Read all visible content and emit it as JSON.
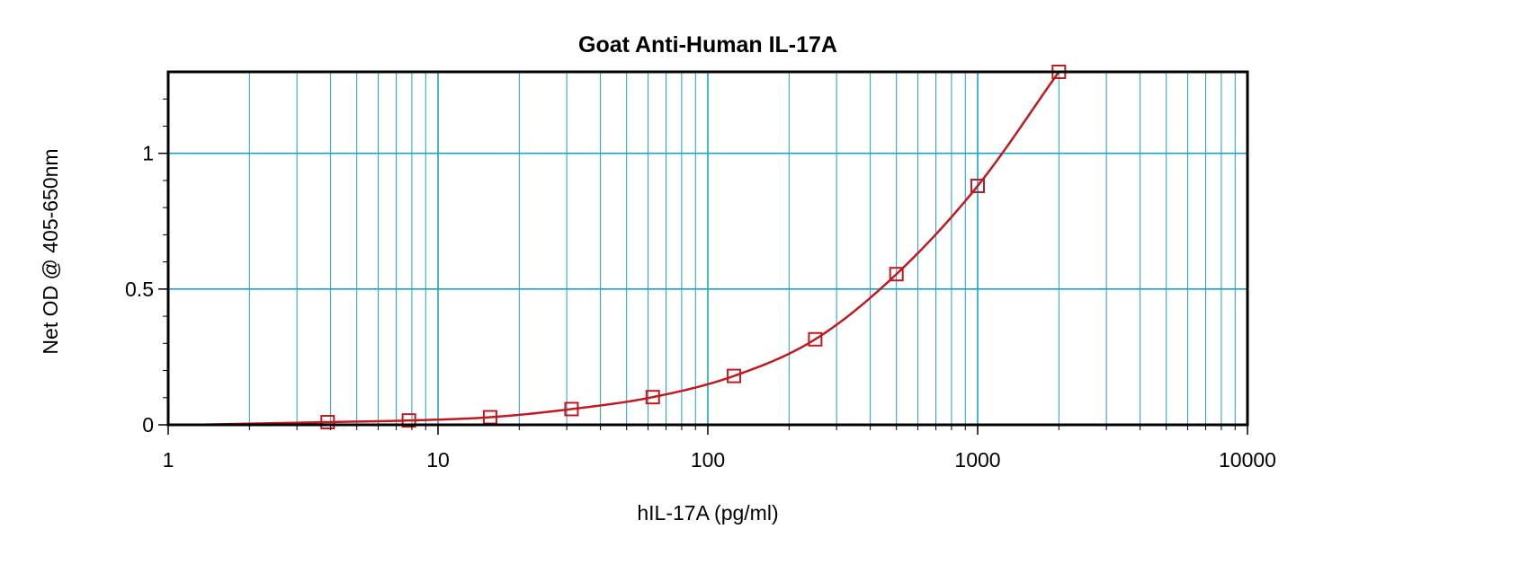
{
  "chart_data": {
    "type": "scatter",
    "title": "Goat Anti-Human IL-17A",
    "xlabel": "hIL-17A (pg/ml)",
    "ylabel": "Net OD @ 405-650nm",
    "xscale": "log",
    "xlim": [
      1,
      10000
    ],
    "ylim": [
      0,
      1.3
    ],
    "grid": true,
    "x_ticks": [
      "1",
      "10",
      "100",
      "1000",
      "10000"
    ],
    "y_ticks": [
      "0",
      "0.5",
      "1"
    ],
    "colors": {
      "grid": "#1aa3c6",
      "series": "#c0191e",
      "axis": "#000000"
    },
    "series": [
      {
        "marker": "square",
        "fit": "curve",
        "x": [
          3.9,
          7.8,
          15.6,
          31.25,
          62.5,
          125,
          250,
          500,
          1000,
          2000
        ],
        "y": [
          0.01,
          0.016,
          0.028,
          0.058,
          0.102,
          0.18,
          0.315,
          0.555,
          0.88,
          1.3
        ]
      }
    ]
  }
}
